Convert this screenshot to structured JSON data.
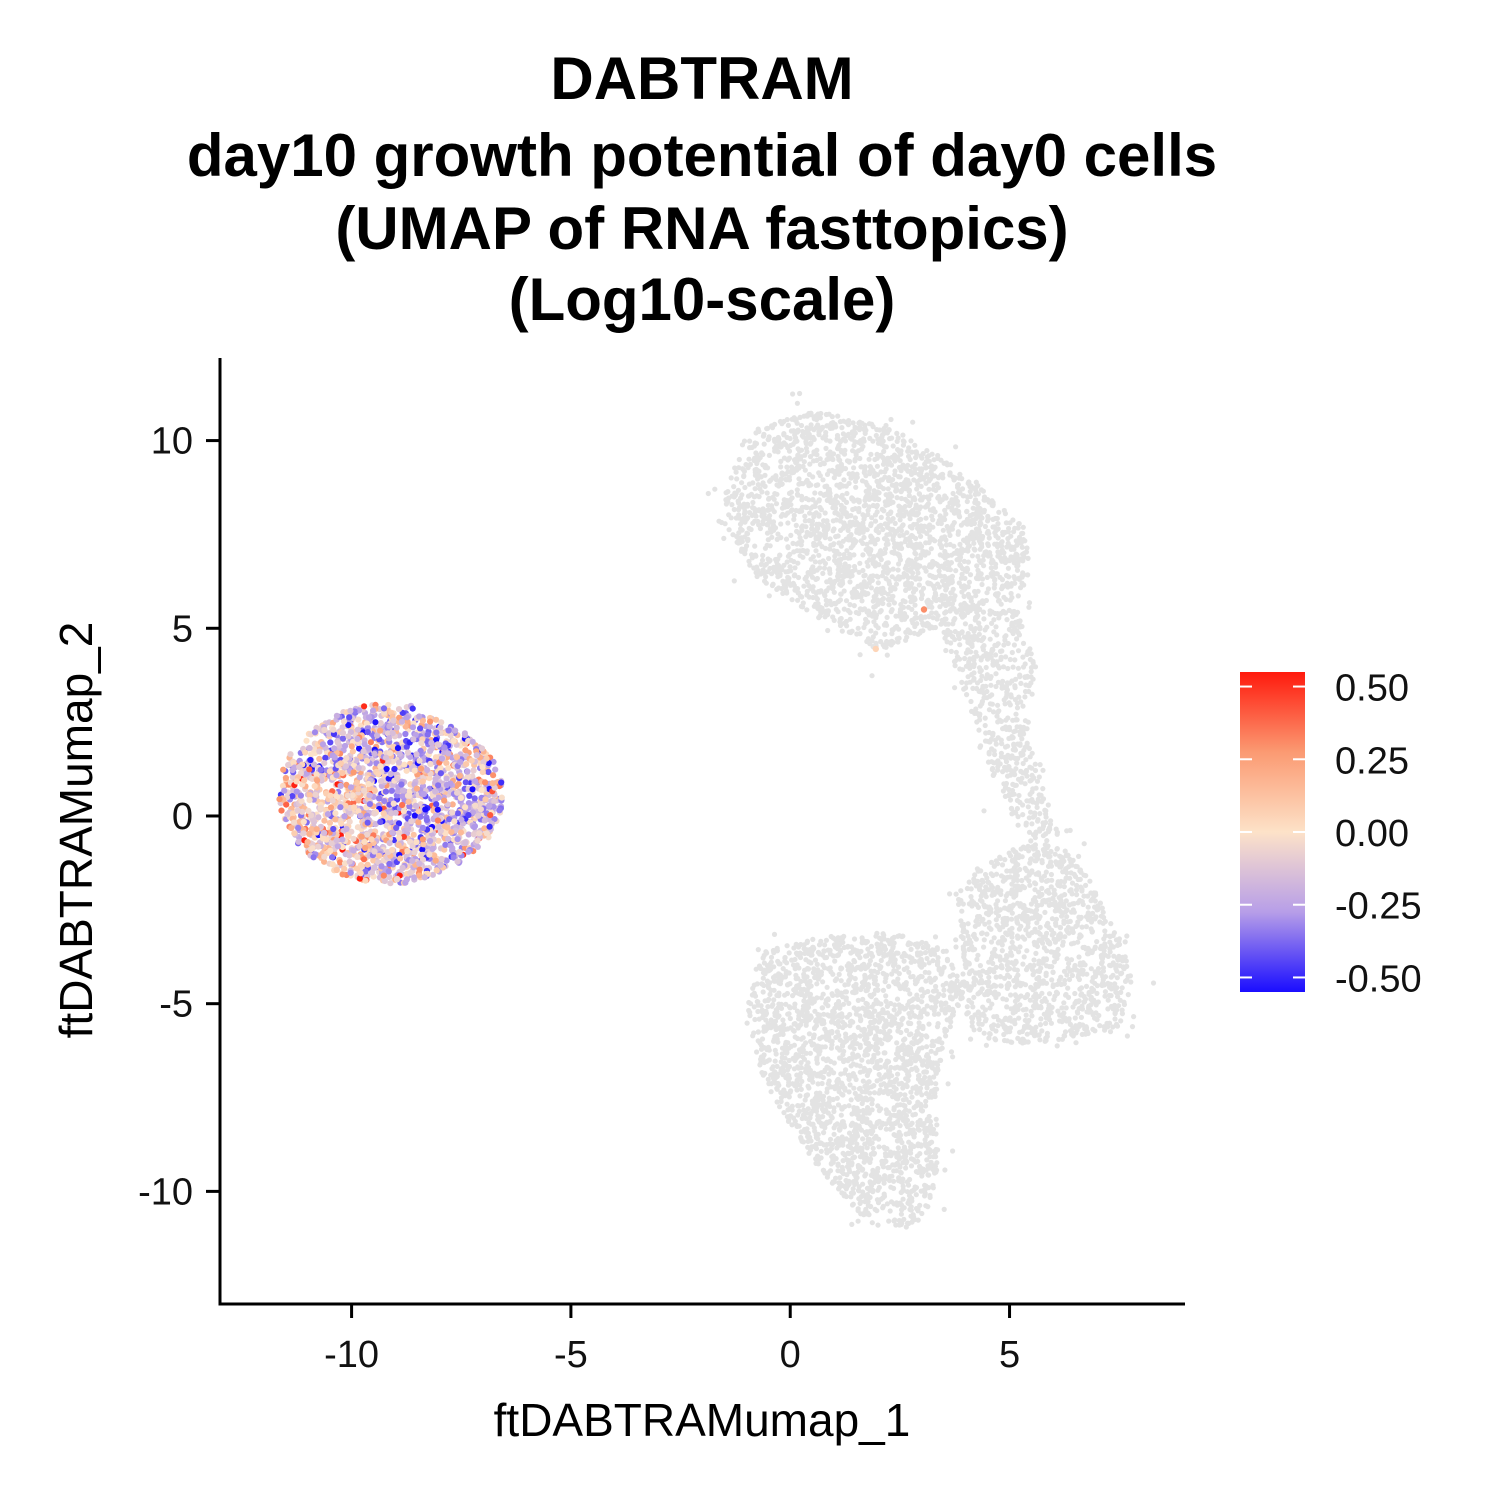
{
  "chart_data": {
    "type": "scatter",
    "title_lines": [
      "DABTRAM",
      "day10 growth potential of day0 cells",
      "(UMAP of RNA fasttopics)",
      "(Log10-scale)"
    ],
    "xlabel": "ftDABTRAMumap_1",
    "ylabel": "ftDABTRAMumap_2",
    "xlim": [
      -13,
      9
    ],
    "ylim": [
      -13,
      12.2
    ],
    "x_ticks": [
      -10,
      -5,
      0,
      5
    ],
    "x_tick_labels": [
      "-10",
      "-5",
      "0",
      "5"
    ],
    "y_ticks": [
      -10,
      -5,
      0,
      5,
      10
    ],
    "y_tick_labels": [
      "-10",
      "-5",
      "0",
      "5",
      "10"
    ],
    "grid": false,
    "color_scale": {
      "min": -0.55,
      "max": 0.55,
      "ticks": [
        0.5,
        0.25,
        0.0,
        -0.25,
        -0.5
      ],
      "tick_labels": [
        "0.50",
        "0.25",
        "0.00",
        "-0.25",
        "-0.50"
      ],
      "low_color": "#1a0dff",
      "mid_low_color": "#b79ee8",
      "mid_color": "#fde2c8",
      "mid_high_color": "#fb9a72",
      "high_color": "#ff1a0d",
      "legend_position": "right"
    },
    "na_color": "#e3e3e3",
    "colored_cluster": {
      "description_values": "day0 cells with growth potential values",
      "center": [
        -9.1,
        0.6
      ],
      "x_range": [
        -11.6,
        -6.5
      ],
      "y_range": [
        -1.7,
        3.1
      ],
      "value_range": [
        -0.55,
        0.55
      ]
    },
    "gray_clusters": [
      {
        "region": "upper",
        "x_range": [
          -1.5,
          5.5
        ],
        "y_range": [
          4.3,
          10.8
        ]
      },
      {
        "region": "bridge",
        "x_range": [
          3.4,
          6.2
        ],
        "y_range": [
          -0.5,
          5.0
        ]
      },
      {
        "region": "right-lower",
        "x_range": [
          3.8,
          7.8
        ],
        "y_range": [
          -6.2,
          -0.5
        ]
      },
      {
        "region": "lower-left",
        "x_range": [
          -1.0,
          4.2
        ],
        "y_range": [
          -11.0,
          -3.2
        ]
      }
    ],
    "highlighted_points": [
      {
        "x": 3.05,
        "y": 5.5,
        "value": 0.3
      },
      {
        "x": 1.95,
        "y": 4.45,
        "value": 0.05
      }
    ]
  }
}
